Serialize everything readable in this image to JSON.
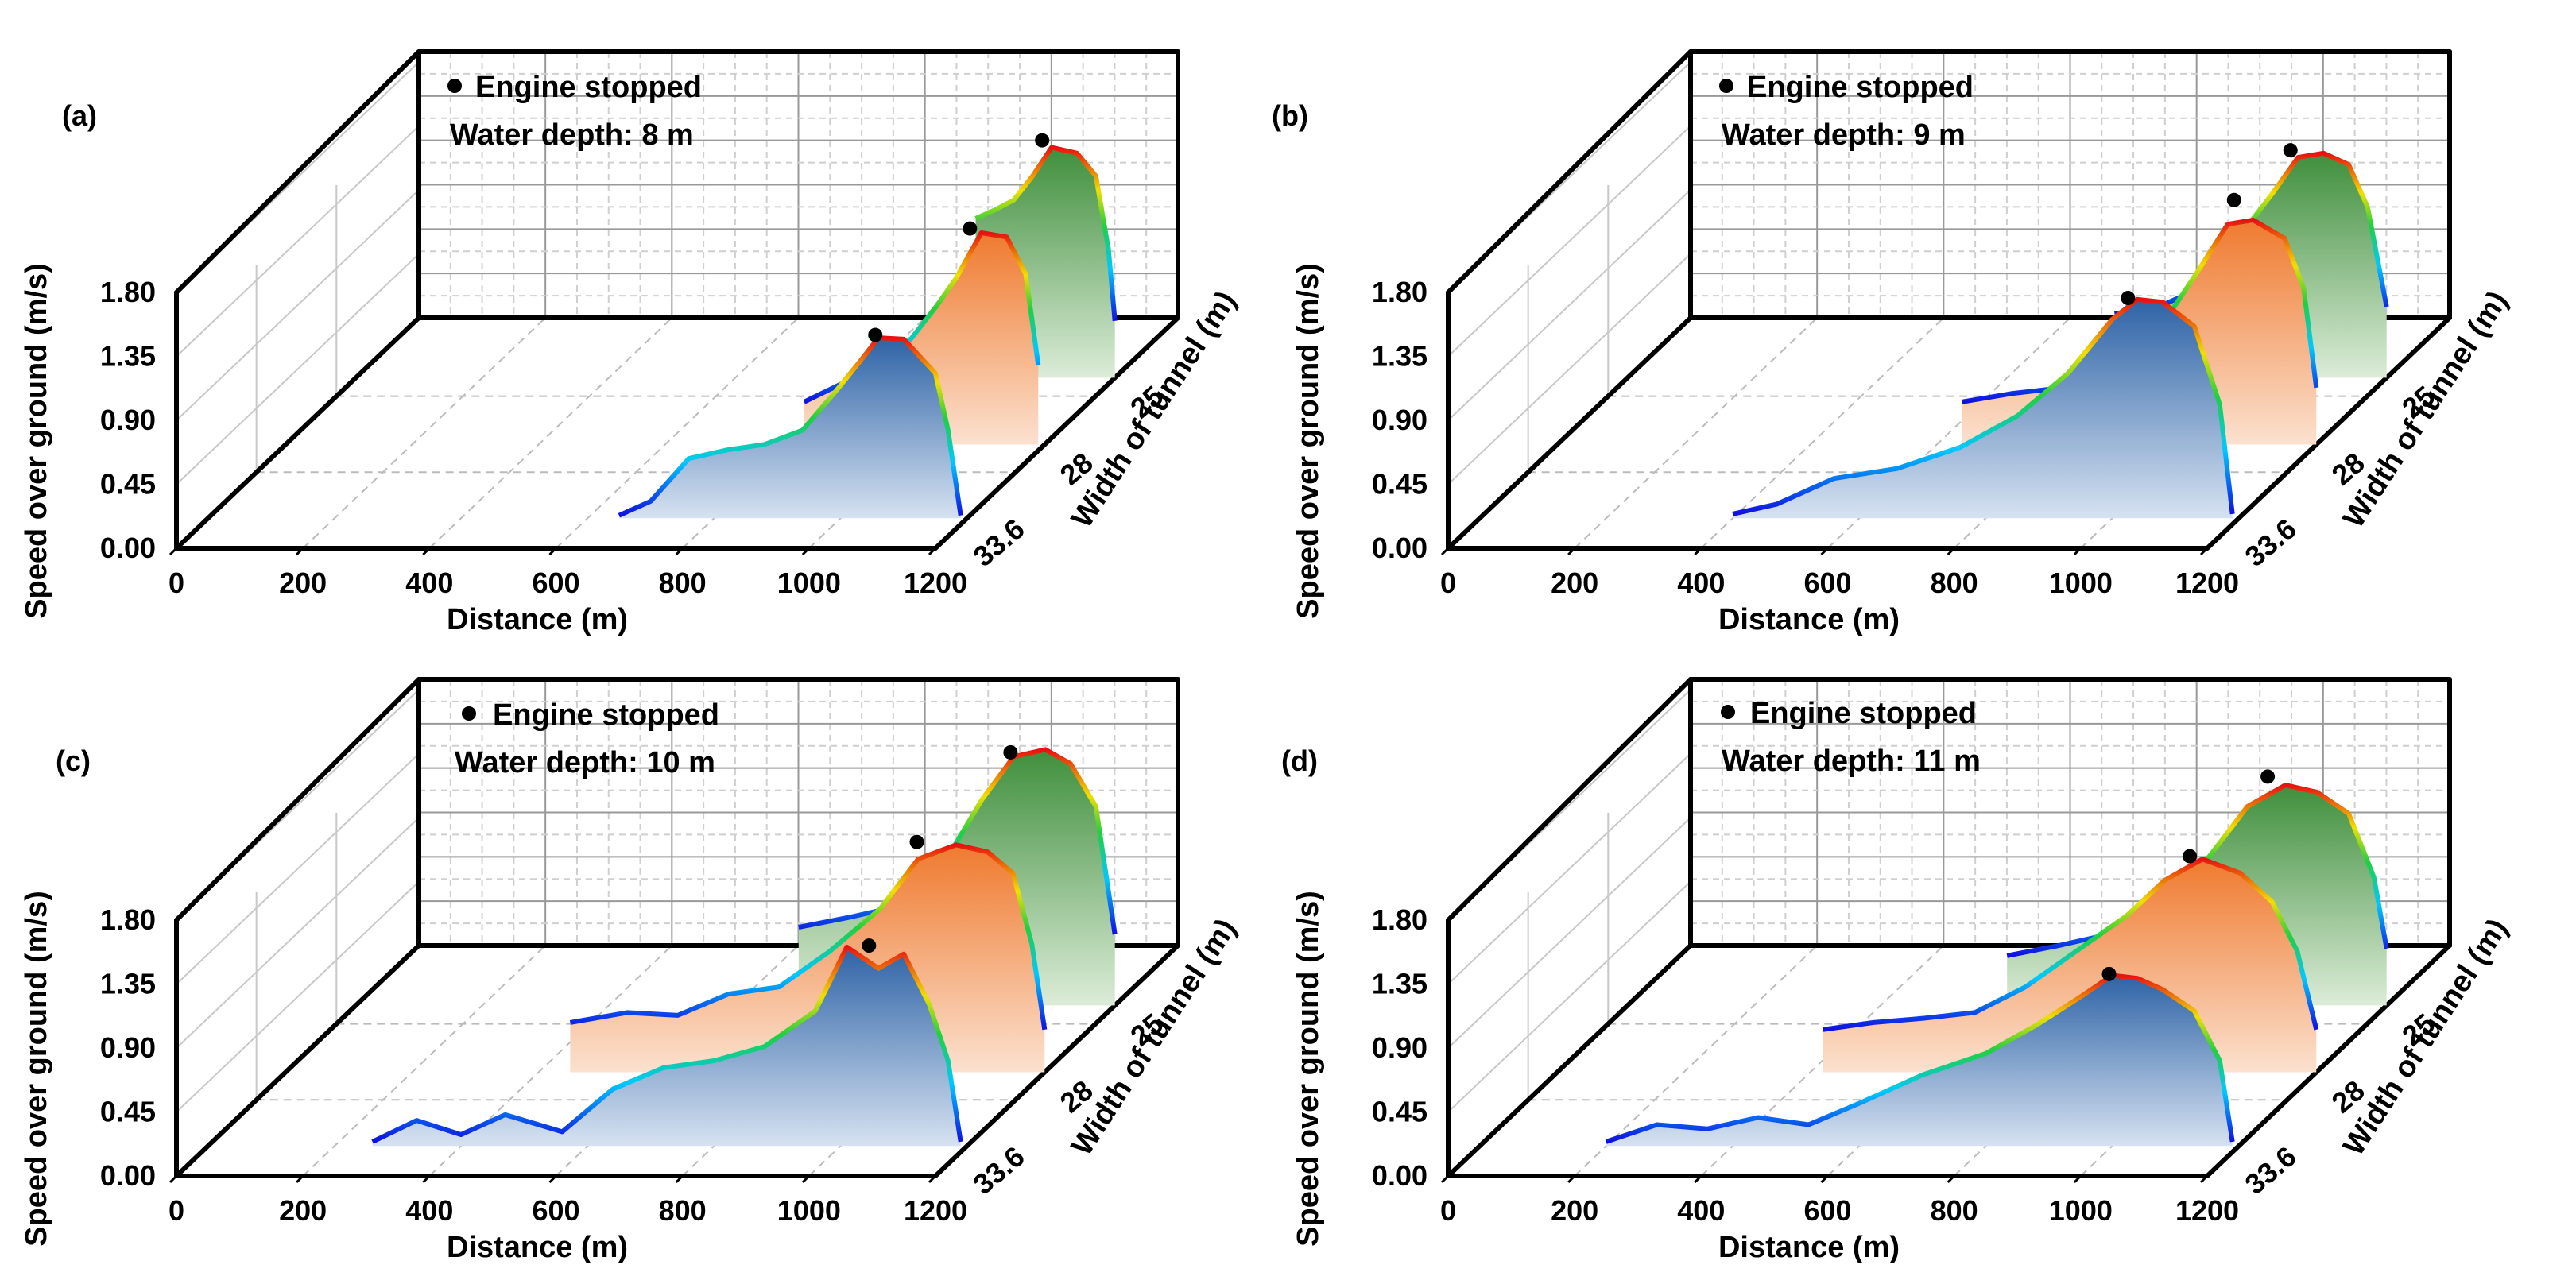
{
  "figure": {
    "panel_labels": [
      "(a)",
      "(b)",
      "(c)",
      "(d)"
    ]
  },
  "chart_data": [
    {
      "panel": "(a)",
      "type": "3d-line-area",
      "title": "",
      "xlabel": "Distance (m)",
      "ylabel": "Speed over ground (m/s)",
      "zlabel": "Width of tunnel (m)",
      "x_ticks": [
        "0",
        "200",
        "400",
        "600",
        "800",
        "1000",
        "1200"
      ],
      "y_ticks": [
        "0.00",
        "0.45",
        "0.90",
        "1.35",
        "1.80"
      ],
      "z_ticks": [
        "33.6",
        "28",
        "25"
      ],
      "xlim": [
        0,
        1200
      ],
      "ylim": [
        0,
        1.8
      ],
      "annotation": "Water depth: 8 m",
      "legend": "Engine stopped",
      "series": [
        {
          "name": "33.6",
          "color": "#3f74b3",
          "x": [
            650,
            700,
            760,
            820,
            880,
            940,
            990,
            1030,
            1060,
            1100,
            1150,
            1170,
            1190
          ],
          "y": [
            0.02,
            0.12,
            0.42,
            0.48,
            0.52,
            0.62,
            0.88,
            1.1,
            1.27,
            1.26,
            1.02,
            0.62,
            0.02
          ],
          "stop": [
            1055,
            1.29
          ]
        },
        {
          "name": "28",
          "color": "#ef8a4b",
          "x": [
            820,
            880,
            940,
            990,
            1030,
            1060,
            1100,
            1140,
            1170,
            1190
          ],
          "y": [
            0.3,
            0.43,
            0.55,
            0.75,
            0.98,
            1.17,
            1.49,
            1.46,
            1.2,
            0.56
          ],
          "stop": [
            1082,
            1.52
          ]
        },
        {
          "name": "25",
          "color": "#5e9e5a",
          "x": [
            980,
            1010,
            1040,
            1070,
            1100,
            1140,
            1170,
            1190,
            1200
          ],
          "y": [
            1.12,
            1.18,
            1.25,
            1.42,
            1.62,
            1.58,
            1.42,
            0.9,
            0.4
          ],
          "stop": [
            1085,
            1.67
          ]
        }
      ]
    },
    {
      "panel": "(b)",
      "type": "3d-line-area",
      "title": "",
      "xlabel": "Distance (m)",
      "ylabel": "Speed over ground (m/s)",
      "zlabel": "Width of tunnel (m)",
      "x_ticks": [
        "0",
        "200",
        "400",
        "600",
        "800",
        "1000",
        "1200"
      ],
      "y_ticks": [
        "0.00",
        "0.45",
        "0.90",
        "1.35",
        "1.80"
      ],
      "z_ticks": [
        "33.6",
        "28",
        "25"
      ],
      "xlim": [
        0,
        1200
      ],
      "ylim": [
        0,
        1.8
      ],
      "annotation": "Water depth: 9 m",
      "legend": "Engine stopped",
      "series": [
        {
          "name": "33.6",
          "color": "#3f74b3",
          "x": [
            400,
            470,
            560,
            660,
            760,
            850,
            930,
            1000,
            1040,
            1080,
            1130,
            1170,
            1190
          ],
          "y": [
            0.03,
            0.1,
            0.28,
            0.35,
            0.5,
            0.72,
            1.02,
            1.4,
            1.54,
            1.52,
            1.35,
            0.8,
            0.03
          ],
          "stop": [
            1025,
            1.55
          ]
        },
        {
          "name": "28",
          "color": "#ef8a4b",
          "x": [
            640,
            720,
            800,
            880,
            950,
            1010,
            1060,
            1100,
            1150,
            1180,
            1200
          ],
          "y": [
            0.3,
            0.36,
            0.4,
            0.55,
            0.8,
            1.2,
            1.55,
            1.58,
            1.45,
            1.1,
            0.4
          ],
          "stop": [
            1070,
            1.72
          ]
        },
        {
          "name": "25",
          "color": "#5e9e5a",
          "x": [
            770,
            840,
            900,
            960,
            1020,
            1060,
            1100,
            1140,
            1170,
            1200
          ],
          "y": [
            0.45,
            0.5,
            0.62,
            0.95,
            1.3,
            1.55,
            1.58,
            1.5,
            1.2,
            0.5
          ],
          "stop": [
            1048,
            1.6
          ]
        }
      ]
    },
    {
      "panel": "(c)",
      "type": "3d-line-area",
      "title": "",
      "xlabel": "Distance (m)",
      "ylabel": "Speed over ground (m/s)",
      "zlabel": "Width of tunnel (m)",
      "x_ticks": [
        "0",
        "200",
        "400",
        "600",
        "800",
        "1000",
        "1200"
      ],
      "y_ticks": [
        "0.00",
        "0.45",
        "0.90",
        "1.35",
        "1.80"
      ],
      "z_ticks": [
        "33.6",
        "28",
        "25"
      ],
      "xlim": [
        0,
        1200
      ],
      "ylim": [
        0,
        1.8
      ],
      "annotation": "Water depth: 10 m",
      "legend": "Engine stopped",
      "series": [
        {
          "name": "33.6",
          "color": "#3f74b3",
          "x": [
            260,
            330,
            400,
            470,
            560,
            640,
            720,
            800,
            880,
            960,
            1010,
            1060,
            1100,
            1140,
            1170,
            1190
          ],
          "y": [
            0.03,
            0.18,
            0.08,
            0.22,
            0.1,
            0.4,
            0.55,
            0.6,
            0.7,
            0.95,
            1.4,
            1.25,
            1.35,
            1.0,
            0.6,
            0.03
          ],
          "stop": [
            1045,
            1.41
          ]
        },
        {
          "name": "28",
          "color": "#ef8a4b",
          "x": [
            450,
            540,
            620,
            700,
            780,
            860,
            940,
            1000,
            1060,
            1110,
            1150,
            1180,
            1200
          ],
          "y": [
            0.35,
            0.42,
            0.4,
            0.55,
            0.6,
            0.85,
            1.15,
            1.5,
            1.6,
            1.55,
            1.4,
            0.9,
            0.3
          ],
          "stop": [
            998,
            1.62
          ]
        },
        {
          "name": "25",
          "color": "#5e9e5a",
          "x": [
            700,
            780,
            860,
            930,
            990,
            1040,
            1090,
            1130,
            1170,
            1200
          ],
          "y": [
            0.55,
            0.62,
            0.7,
            1.0,
            1.45,
            1.75,
            1.8,
            1.7,
            1.4,
            0.5
          ],
          "stop": [
            1035,
            1.78
          ]
        }
      ]
    },
    {
      "panel": "(d)",
      "type": "3d-line-area",
      "title": "",
      "xlabel": "Distance (m)",
      "ylabel": "Speed over ground (m/s)",
      "zlabel": "Width of tunnel (m)",
      "x_ticks": [
        "0",
        "200",
        "400",
        "600",
        "800",
        "1000",
        "1200"
      ],
      "y_ticks": [
        "0.00",
        "0.45",
        "0.90",
        "1.35",
        "1.80"
      ],
      "z_ticks": [
        "33.6",
        "28",
        "25"
      ],
      "xlim": [
        0,
        1200
      ],
      "ylim": [
        0,
        1.8
      ],
      "annotation": "Water depth: 11 m",
      "legend": "Engine stopped",
      "series": [
        {
          "name": "33.6",
          "color": "#3f74b3",
          "x": [
            200,
            280,
            360,
            440,
            520,
            600,
            700,
            800,
            880,
            950,
            1000,
            1040,
            1080,
            1130,
            1170,
            1190
          ],
          "y": [
            0.03,
            0.15,
            0.12,
            0.2,
            0.15,
            0.3,
            0.5,
            0.65,
            0.85,
            1.05,
            1.2,
            1.18,
            1.1,
            0.95,
            0.6,
            0.03
          ],
          "stop": [
            995,
            1.21
          ]
        },
        {
          "name": "28",
          "color": "#ef8a4b",
          "x": [
            420,
            500,
            580,
            660,
            740,
            820,
            900,
            960,
            1020,
            1080,
            1130,
            1170,
            1200
          ],
          "y": [
            0.3,
            0.35,
            0.38,
            0.42,
            0.6,
            0.85,
            1.1,
            1.35,
            1.5,
            1.4,
            1.2,
            0.85,
            0.3
          ],
          "stop": [
            1000,
            1.52
          ]
        },
        {
          "name": "25",
          "color": "#5e9e5a",
          "x": [
            600,
            680,
            760,
            840,
            920,
            980,
            1040,
            1090,
            1140,
            1180,
            1200
          ],
          "y": [
            0.35,
            0.42,
            0.5,
            0.7,
            1.05,
            1.4,
            1.55,
            1.5,
            1.35,
            0.9,
            0.4
          ],
          "stop": [
            1012,
            1.61
          ]
        }
      ]
    }
  ]
}
